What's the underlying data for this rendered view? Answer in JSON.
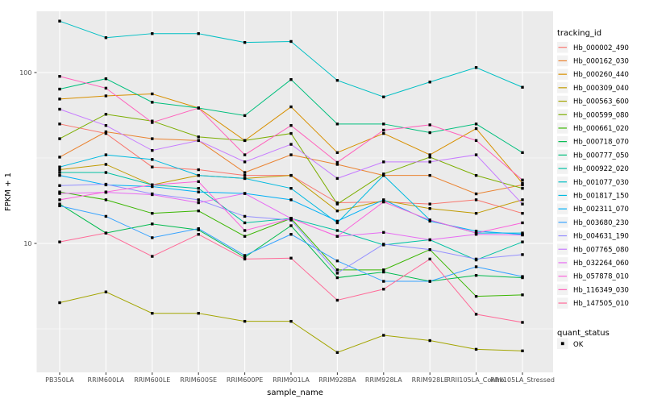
{
  "chart_data": {
    "type": "line",
    "title": "",
    "xlabel": "sample_name",
    "ylabel": "FPKM + 1",
    "yscale": "log10",
    "yticks": [
      10,
      100
    ],
    "minor_gridlines": [
      3.1623,
      31.6228
    ],
    "ylim": [
      1.9,
      230
    ],
    "grid": "on",
    "panel_bg": "#EBEBEB",
    "grid_color": "#FFFFFF",
    "point_shape": "square",
    "point_color": "#000000",
    "legend_position": "right",
    "categories": [
      "PB350LA",
      "RRIM600LA",
      "RRIM600LE",
      "RRIM600SE",
      "RRIM600PE",
      "RRIM901LA",
      "RRIM928BA",
      "RRIM928LA",
      "RRIM928LE",
      "RRII105LA_Control",
      "RRII105LA_Stressed"
    ],
    "series": [
      {
        "name": "Hb_000002_490",
        "color": "#F8766D",
        "values": [
          50,
          44,
          28,
          27,
          25,
          25,
          17.3,
          17.5,
          17,
          18,
          15
        ]
      },
      {
        "name": "Hb_000162_030",
        "color": "#EA8331",
        "values": [
          32,
          45,
          41,
          40,
          26,
          33,
          29,
          25,
          25,
          19.5,
          22
        ]
      },
      {
        "name": "Hb_000260_440",
        "color": "#D89000",
        "values": [
          70,
          73,
          75,
          62,
          40,
          63,
          34,
          44,
          33,
          47,
          22.5
        ]
      },
      {
        "name": "Hb_000309_040",
        "color": "#C09B00",
        "values": [
          27,
          29,
          22,
          25,
          24,
          25,
          15.5,
          17.8,
          16,
          15,
          18
        ]
      },
      {
        "name": "Hb_000563_600",
        "color": "#A3A500",
        "values": [
          4.5,
          5.2,
          3.9,
          3.9,
          3.5,
          3.5,
          2.3,
          2.9,
          2.7,
          2.4,
          2.35
        ]
      },
      {
        "name": "Hb_000599_080",
        "color": "#7CAE00",
        "values": [
          41,
          57,
          52,
          42,
          40,
          44,
          17,
          25.5,
          32,
          25,
          21
        ]
      },
      {
        "name": "Hb_000661_020",
        "color": "#39B600",
        "values": [
          20,
          18,
          15,
          15.5,
          11,
          14,
          7,
          7,
          9.2,
          4.9,
          5
        ]
      },
      {
        "name": "Hb_000718_070",
        "color": "#00BB4E",
        "values": [
          17,
          11.5,
          13,
          12,
          8.3,
          12.7,
          6.3,
          6.8,
          6,
          6.5,
          6.3
        ]
      },
      {
        "name": "Hb_000777_050",
        "color": "#00BF7D",
        "values": [
          80,
          92,
          67,
          62,
          56,
          91,
          50,
          50,
          44.5,
          50,
          34
        ]
      },
      {
        "name": "Hb_000922_020",
        "color": "#00C1A3",
        "values": [
          26,
          26,
          22,
          21,
          13.2,
          14,
          11.9,
          9.8,
          10.5,
          8,
          10.2
        ]
      },
      {
        "name": "Hb_001077_030",
        "color": "#00BFC4",
        "values": [
          200,
          160,
          169,
          169,
          150,
          152,
          90,
          72,
          88,
          107,
          82
        ]
      },
      {
        "name": "Hb_001817_150",
        "color": "#00BAE0",
        "values": [
          28,
          33,
          31,
          25,
          24,
          21,
          13.2,
          25,
          13.7,
          11.5,
          11.5
        ]
      },
      {
        "name": "Hb_002311_070",
        "color": "#00B0F6",
        "values": [
          25,
          22,
          21.5,
          20,
          19.6,
          18,
          13.5,
          18,
          13.5,
          11.8,
          11.3
        ]
      },
      {
        "name": "Hb_003680_230",
        "color": "#35A2FF",
        "values": [
          16.6,
          14.4,
          10.8,
          12.2,
          8.5,
          11.3,
          7.9,
          6,
          6,
          7.3,
          6.4
        ]
      },
      {
        "name": "Hb_004631_190",
        "color": "#9590FF",
        "values": [
          21.8,
          22.2,
          19.5,
          18,
          14.4,
          13.7,
          6.7,
          9.9,
          9.2,
          8.1,
          8.6
        ]
      },
      {
        "name": "Hb_007765_080",
        "color": "#C77CFF",
        "values": [
          61,
          49,
          35,
          40,
          30,
          38,
          24,
          30,
          30,
          33,
          17
        ]
      },
      {
        "name": "Hb_032264_060",
        "color": "#E76BF3",
        "values": [
          19.6,
          19.9,
          19.3,
          17.3,
          19.6,
          14,
          11,
          11.6,
          10.5,
          11.3,
          11.2
        ]
      },
      {
        "name": "Hb_057878_010",
        "color": "#FA62DB",
        "values": [
          18,
          20,
          22,
          23,
          11.9,
          14,
          11,
          17.5,
          13.7,
          11.5,
          13.2
        ]
      },
      {
        "name": "Hb_116349_030",
        "color": "#FF62BC",
        "values": [
          95,
          81,
          51,
          62,
          33,
          49,
          29.8,
          46,
          49.4,
          40,
          23.5
        ]
      },
      {
        "name": "Hb_147505_010",
        "color": "#FF6A98",
        "values": [
          10.2,
          11.5,
          8.4,
          11.3,
          8.1,
          8.2,
          4.65,
          5.4,
          8.1,
          3.85,
          3.45
        ]
      }
    ]
  },
  "legend": {
    "tracking_title": "tracking_id",
    "quant_title": "quant_status",
    "quant_items": [
      {
        "label": "OK"
      }
    ],
    "key_bg": "#F2F2F2"
  }
}
